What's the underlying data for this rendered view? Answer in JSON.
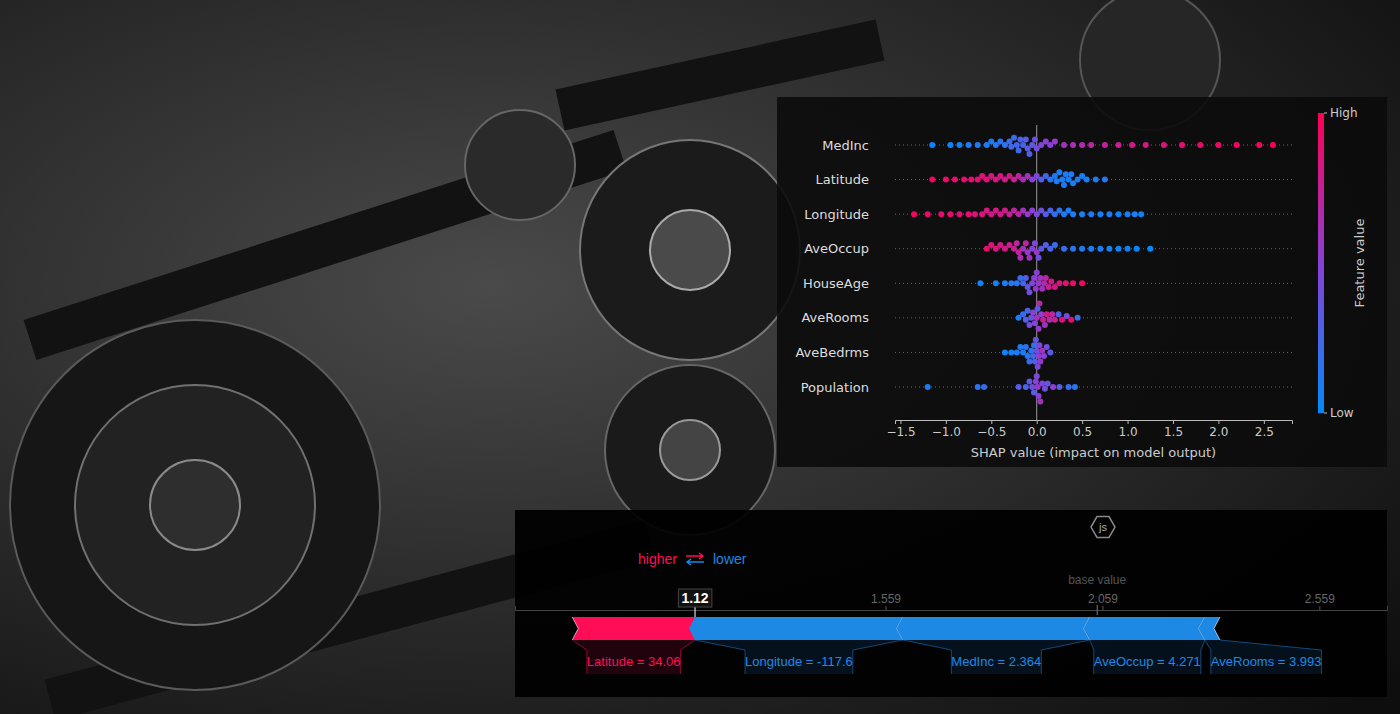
{
  "chart_data": [
    {
      "type": "beeswarm",
      "xlabel": "SHAP value (impact on model output)",
      "xlim": [
        -1.56,
        2.81
      ],
      "xticks": [
        {
          "value": -1.5,
          "label": "−1.5"
        },
        {
          "value": -1,
          "label": "−1.0"
        },
        {
          "value": -0.5,
          "label": "−0.5"
        },
        {
          "value": 0,
          "label": "0.0"
        },
        0.5,
        {
          "value": 1,
          "label": "1.0"
        },
        1.5,
        {
          "value": 2,
          "label": "2.0"
        },
        2.5
      ],
      "grid": true,
      "categories": [
        "MedInc",
        "Latitude",
        "Longitude",
        "AveOccup",
        "HouseAge",
        "AveRooms",
        "AveBedrms",
        "Population"
      ],
      "series": [
        {
          "x": [
            -1.15,
            -0.95,
            -0.85,
            -0.75,
            -0.65,
            -0.55,
            -0.5,
            -0.45,
            -0.4,
            -0.35,
            -0.3,
            -0.28,
            -0.25,
            -0.22,
            -0.2,
            -0.18,
            -0.15,
            -0.12,
            -0.1,
            -0.08,
            -0.05,
            -0.02,
            0,
            0.05,
            0.1,
            0.15,
            0.2,
            0.3,
            0.4,
            0.5,
            0.6,
            0.75,
            0.9,
            1.05,
            1.2,
            1.4,
            1.6,
            1.8,
            2.0,
            2.2,
            2.45,
            2.6
          ],
          "feature_values": [
            0.05,
            0.05,
            0.08,
            0.1,
            0.1,
            0.12,
            0.12,
            0.15,
            0.15,
            0.18,
            0.2,
            0.22,
            0.2,
            0.25,
            0.22,
            0.28,
            0.25,
            0.3,
            0.32,
            0.3,
            0.35,
            0.38,
            0.4,
            0.45,
            0.5,
            0.5,
            0.55,
            0.6,
            0.62,
            0.65,
            0.7,
            0.72,
            0.75,
            0.8,
            0.82,
            0.85,
            0.88,
            0.9,
            0.92,
            0.95,
            0.97,
            1.0
          ]
        },
        {
          "x": [
            -1.15,
            -1.0,
            -0.9,
            -0.8,
            -0.72,
            -0.65,
            -0.6,
            -0.55,
            -0.5,
            -0.45,
            -0.4,
            -0.35,
            -0.3,
            -0.25,
            -0.2,
            -0.15,
            -0.1,
            -0.05,
            0,
            0.05,
            0.1,
            0.15,
            0.2,
            0.22,
            0.25,
            0.28,
            0.3,
            0.32,
            0.35,
            0.38,
            0.4,
            0.45,
            0.5,
            0.55,
            0.65,
            0.75
          ],
          "feature_values": [
            0.95,
            0.92,
            0.9,
            0.9,
            0.88,
            0.88,
            0.85,
            0.85,
            0.82,
            0.85,
            0.8,
            0.78,
            0.82,
            0.75,
            0.7,
            0.65,
            0.6,
            0.5,
            0.45,
            0.3,
            0.25,
            0.15,
            0.12,
            0.1,
            0.1,
            0.08,
            0.1,
            0.12,
            0.08,
            0.1,
            0.1,
            0.12,
            0.08,
            0.1,
            0.12,
            0.15
          ]
        },
        {
          "x": [
            -1.35,
            -1.2,
            -1.05,
            -0.95,
            -0.85,
            -0.75,
            -0.68,
            -0.6,
            -0.55,
            -0.5,
            -0.45,
            -0.4,
            -0.35,
            -0.3,
            -0.25,
            -0.2,
            -0.15,
            -0.1,
            -0.05,
            0,
            0.05,
            0.1,
            0.15,
            0.2,
            0.25,
            0.3,
            0.35,
            0.4,
            0.5,
            0.6,
            0.7,
            0.8,
            0.9,
            1.0,
            1.08,
            1.15
          ],
          "feature_values": [
            0.95,
            0.92,
            0.9,
            0.9,
            0.88,
            0.88,
            0.85,
            0.85,
            0.82,
            0.8,
            0.82,
            0.8,
            0.78,
            0.75,
            0.72,
            0.7,
            0.6,
            0.55,
            0.5,
            0.45,
            0.4,
            0.3,
            0.25,
            0.2,
            0.15,
            0.12,
            0.1,
            0.1,
            0.08,
            0.1,
            0.08,
            0.1,
            0.05,
            0.08,
            0.1,
            0.05
          ]
        },
        {
          "x": [
            -0.55,
            -0.5,
            -0.45,
            -0.4,
            -0.35,
            -0.3,
            -0.25,
            -0.22,
            -0.2,
            -0.18,
            -0.15,
            -0.12,
            -0.1,
            -0.08,
            -0.05,
            -0.02,
            0,
            0.02,
            0.05,
            0.1,
            0.15,
            0.2,
            0.3,
            0.4,
            0.5,
            0.6,
            0.7,
            0.8,
            0.9,
            1.0,
            1.1,
            1.25
          ],
          "feature_values": [
            0.9,
            0.85,
            0.85,
            0.8,
            0.8,
            0.78,
            0.75,
            0.7,
            0.72,
            0.65,
            0.6,
            0.7,
            0.55,
            0.6,
            0.5,
            0.45,
            0.55,
            0.4,
            0.35,
            0.3,
            0.25,
            0.2,
            0.18,
            0.15,
            0.12,
            0.1,
            0.1,
            0.08,
            0.05,
            0.05,
            0.03,
            0.02
          ]
        },
        {
          "x": [
            -0.62,
            -0.45,
            -0.35,
            -0.28,
            -0.22,
            -0.18,
            -0.15,
            -0.12,
            -0.1,
            -0.08,
            -0.05,
            -0.03,
            -0.01,
            0,
            0.02,
            0.04,
            0.06,
            0.08,
            0.1,
            0.13,
            0.16,
            0.2,
            0.25,
            0.32,
            0.4,
            0.5
          ],
          "feature_values": [
            0.05,
            0.08,
            0.1,
            0.12,
            0.15,
            0.2,
            0.25,
            0.3,
            0.35,
            0.4,
            0.45,
            0.5,
            0.55,
            0.5,
            0.55,
            0.6,
            0.6,
            0.65,
            0.7,
            0.75,
            0.8,
            0.82,
            0.85,
            0.88,
            0.9,
            0.95
          ]
        },
        {
          "x": [
            -0.2,
            -0.15,
            -0.12,
            -0.1,
            -0.08,
            -0.06,
            -0.04,
            -0.02,
            0,
            0.01,
            0.02,
            0.03,
            0.05,
            0.07,
            0.09,
            0.11,
            0.14,
            0.17,
            0.2,
            0.24,
            0.28,
            0.33,
            0.38,
            0.45
          ],
          "feature_values": [
            0.1,
            0.2,
            0.3,
            0.25,
            0.4,
            0.35,
            0.5,
            0.45,
            0.6,
            0.3,
            0.55,
            0.7,
            0.5,
            0.75,
            0.6,
            0.8,
            0.65,
            0.7,
            0.75,
            0.3,
            0.85,
            0.4,
            0.9,
            0.2
          ]
        },
        {
          "x": [
            -0.35,
            -0.28,
            -0.22,
            -0.18,
            -0.15,
            -0.12,
            -0.1,
            -0.08,
            -0.06,
            -0.04,
            -0.03,
            -0.02,
            -0.01,
            0,
            0.01,
            0.02,
            0.03,
            0.04,
            0.06,
            0.08,
            0.11,
            0.15
          ],
          "feature_values": [
            0.05,
            0.08,
            0.1,
            0.12,
            0.1,
            0.15,
            0.12,
            0.2,
            0.15,
            0.25,
            0.2,
            0.3,
            0.35,
            0.4,
            0.45,
            0.5,
            0.45,
            0.55,
            0.6,
            0.5,
            0.4,
            0.3
          ]
        },
        {
          "x": [
            -1.2,
            -0.65,
            -0.58,
            -0.2,
            -0.12,
            -0.08,
            -0.05,
            -0.03,
            -0.01,
            0,
            0.01,
            0.02,
            0.04,
            0.06,
            0.09,
            0.12,
            0.18,
            0.25,
            0.35,
            0.42
          ],
          "feature_values": [
            0.1,
            0.15,
            0.2,
            0.3,
            0.25,
            0.35,
            0.4,
            0.3,
            0.5,
            0.45,
            0.55,
            0.5,
            0.6,
            0.45,
            0.4,
            0.35,
            0.5,
            0.3,
            0.2,
            0.15
          ]
        }
      ],
      "colorbar": {
        "label": "Feature value",
        "range": [
          0,
          1
        ],
        "ticks": [
          {
            "value": 1,
            "label": "High"
          },
          {
            "value": 0,
            "label": "Low"
          }
        ],
        "colors": [
          "#008bfb",
          "#8a3fd6",
          "#ff0052"
        ]
      }
    },
    {
      "type": "force",
      "annotations": [
        "js"
      ],
      "direction_labels": [
        "higher",
        "lower"
      ],
      "base_label": "base value",
      "base_value": 2.047,
      "output_value": 1.12,
      "xlim": [
        0.705,
        2.715
      ],
      "xticks": [
        1.559,
        2.059,
        2.559
      ],
      "features": [
        {
          "label": "Latitude = 34.06",
          "value": 0.283
        },
        {
          "label": "Longitude = -117.6",
          "value": -0.479
        },
        {
          "label": "MedInc = 2.364",
          "value": -0.431
        },
        {
          "label": "AveOccup = 4.271",
          "value": -0.265
        },
        {
          "label": "AveRooms = 3.993",
          "value": -0.035
        }
      ],
      "colors": [
        "#ff0d57",
        "#1e88e5",
        "#1e88e5",
        "#1e88e5",
        "#1e88e5"
      ]
    }
  ]
}
